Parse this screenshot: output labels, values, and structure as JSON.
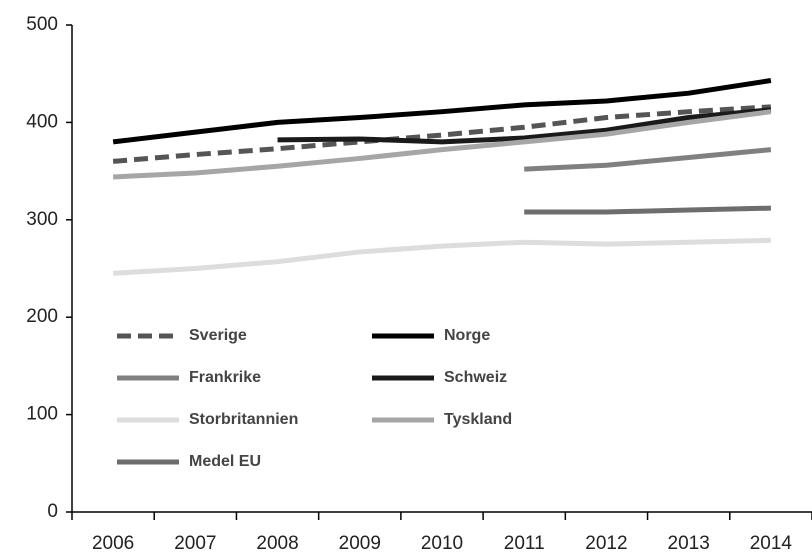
{
  "chart_data": {
    "type": "line",
    "categories": [
      "2006",
      "2007",
      "2008",
      "2009",
      "2010",
      "2011",
      "2012",
      "2013",
      "2014"
    ],
    "series": [
      {
        "name": "Sverige",
        "color": "#555555",
        "dash": true,
        "values": [
          360,
          367,
          373,
          380,
          387,
          395,
          405,
          411,
          416
        ]
      },
      {
        "name": "Norge",
        "color": "#000000",
        "values": [
          380,
          390,
          400,
          405,
          411,
          418,
          422,
          430,
          443
        ]
      },
      {
        "name": "Frankrike",
        "color": "#808080",
        "values": [
          null,
          null,
          null,
          null,
          null,
          352,
          356,
          364,
          372
        ]
      },
      {
        "name": "Schweiz",
        "color": "#1a1a1a",
        "values": [
          null,
          null,
          382,
          383,
          380,
          384,
          392,
          405,
          413
        ]
      },
      {
        "name": "Storbritannien",
        "color": "#dddddd",
        "values": [
          245,
          250,
          257,
          267,
          273,
          277,
          275,
          277,
          279
        ]
      },
      {
        "name": "Tyskland",
        "color": "#a6a6a6",
        "values": [
          344,
          348,
          355,
          363,
          372,
          380,
          388,
          400,
          411
        ]
      },
      {
        "name": "Medel EU",
        "color": "#6d6d6d",
        "values": [
          null,
          null,
          null,
          null,
          null,
          308,
          308,
          310,
          312
        ]
      }
    ],
    "ylim": [
      0,
      500
    ],
    "yticks": [
      0,
      100,
      200,
      300,
      400,
      500
    ],
    "grid": false,
    "legend": "lower left"
  }
}
